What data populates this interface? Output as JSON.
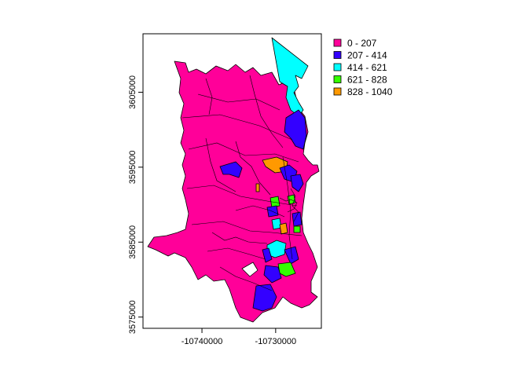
{
  "map": {
    "x_axis": {
      "range": [
        -10748000,
        -10723800
      ],
      "ticks": [
        {
          "value": -10740000,
          "label": "-10740000"
        },
        {
          "value": -10730000,
          "label": "-10730000"
        }
      ]
    },
    "y_axis": {
      "range": [
        3573500,
        3612800
      ],
      "ticks": [
        {
          "value": 3575000,
          "label": "3575000"
        },
        {
          "value": 3585000,
          "label": "3585000"
        },
        {
          "value": 3595000,
          "label": "3595000"
        },
        {
          "value": 3605000,
          "label": "3605000"
        }
      ]
    },
    "legend": {
      "placement": "right",
      "entries": [
        {
          "label": "0 - 207",
          "color": "#ff0099"
        },
        {
          "label": "207 - 414",
          "color": "#3300ff"
        },
        {
          "label": "414 - 621",
          "color": "#00ffff"
        },
        {
          "label": "621 - 828",
          "color": "#33ff00"
        },
        {
          "label": "828 - 1040",
          "color": "#ff9900"
        }
      ]
    },
    "colors": {
      "class_1": "#ff0099",
      "class_2": "#3300ff",
      "class_3": "#00ffff",
      "class_4": "#33ff00",
      "class_5": "#ff9900",
      "boundary": "#000000"
    }
  }
}
